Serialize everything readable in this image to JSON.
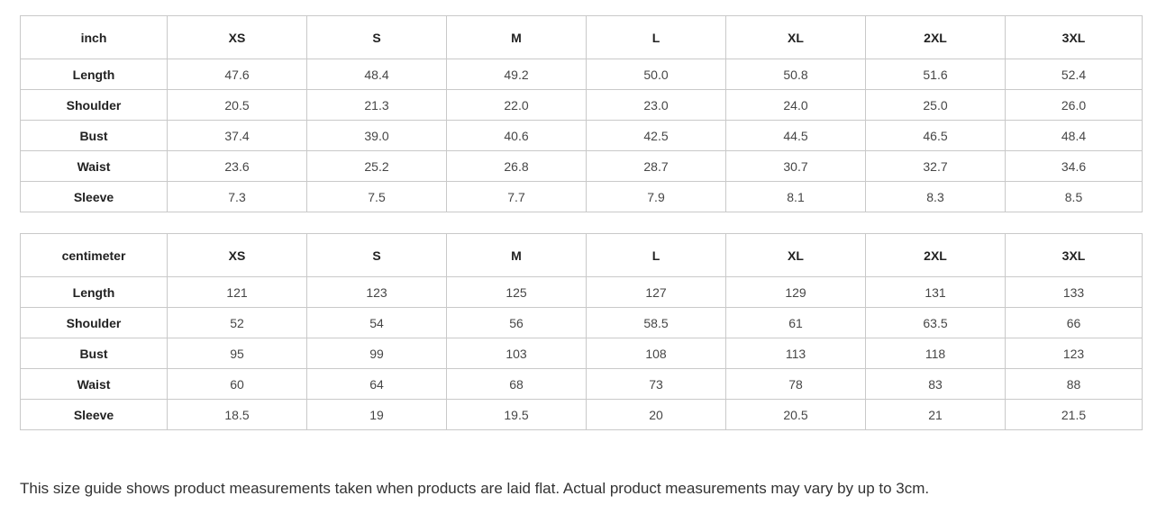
{
  "tables": [
    {
      "unit_label": "inch",
      "columns": [
        "XS",
        "S",
        "M",
        "L",
        "XL",
        "2XL",
        "3XL"
      ],
      "rows": [
        {
          "label": "Length",
          "values": [
            "47.6",
            "48.4",
            "49.2",
            "50.0",
            "50.8",
            "51.6",
            "52.4"
          ]
        },
        {
          "label": "Shoulder",
          "values": [
            "20.5",
            "21.3",
            "22.0",
            "23.0",
            "24.0",
            "25.0",
            "26.0"
          ]
        },
        {
          "label": "Bust",
          "values": [
            "37.4",
            "39.0",
            "40.6",
            "42.5",
            "44.5",
            "46.5",
            "48.4"
          ]
        },
        {
          "label": "Waist",
          "values": [
            "23.6",
            "25.2",
            "26.8",
            "28.7",
            "30.7",
            "32.7",
            "34.6"
          ]
        },
        {
          "label": "Sleeve",
          "values": [
            "7.3",
            "7.5",
            "7.7",
            "7.9",
            "8.1",
            "8.3",
            "8.5"
          ]
        }
      ]
    },
    {
      "unit_label": "centimeter",
      "columns": [
        "XS",
        "S",
        "M",
        "L",
        "XL",
        "2XL",
        "3XL"
      ],
      "rows": [
        {
          "label": "Length",
          "values": [
            "121",
            "123",
            "125",
            "127",
            "129",
            "131",
            "133"
          ]
        },
        {
          "label": "Shoulder",
          "values": [
            "52",
            "54",
            "56",
            "58.5",
            "61",
            "63.5",
            "66"
          ]
        },
        {
          "label": "Bust",
          "values": [
            "95",
            "99",
            "103",
            "108",
            "113",
            "118",
            "123"
          ]
        },
        {
          "label": "Waist",
          "values": [
            "60",
            "64",
            "68",
            "73",
            "78",
            "83",
            "88"
          ]
        },
        {
          "label": "Sleeve",
          "values": [
            "18.5",
            "19",
            "19.5",
            "20",
            "20.5",
            "21",
            "21.5"
          ]
        }
      ]
    }
  ],
  "footer": {
    "note": "This size guide shows product measurements taken when products are laid flat. Actual product measurements may vary by up to 3cm."
  },
  "colors": {
    "background": "#ffffff",
    "border": "#c9c9c9",
    "header_text": "#222222",
    "data_text": "#464646",
    "note_text": "#333333"
  }
}
